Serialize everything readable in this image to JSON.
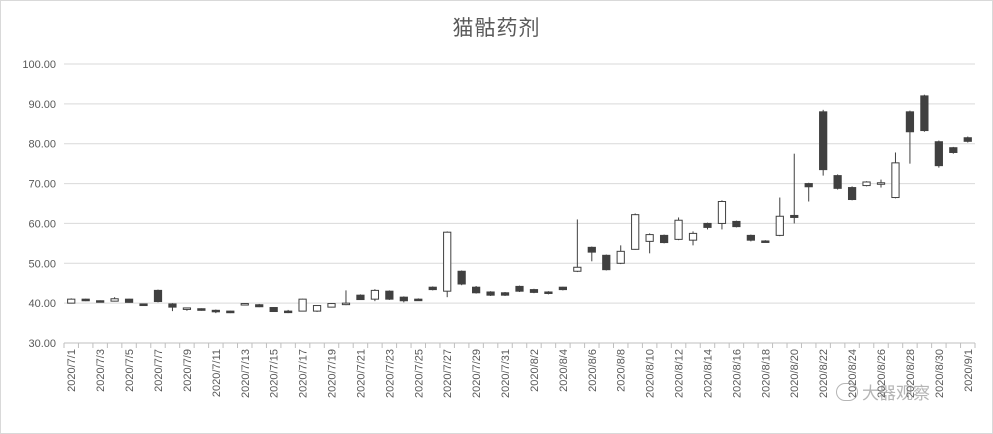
{
  "chart_data": {
    "type": "candlestick",
    "title": "猫骷药剂",
    "y_min": 30,
    "y_max": 100,
    "y_step": 10,
    "y_ticks": [
      "30.00",
      "40.00",
      "50.00",
      "60.00",
      "70.00",
      "80.00",
      "90.00",
      "100.00"
    ],
    "grid": true,
    "colors": {
      "up": "#ffffff",
      "down": "#404040",
      "outline": "#404040",
      "grid": "#d9d9d9",
      "axis": "#bfbfbf"
    },
    "dates": [
      "2020/7/1",
      "2020/7/2",
      "2020/7/3",
      "2020/7/4",
      "2020/7/5",
      "2020/7/6",
      "2020/7/7",
      "2020/7/8",
      "2020/7/9",
      "2020/7/10",
      "2020/7/11",
      "2020/7/12",
      "2020/7/13",
      "2020/7/14",
      "2020/7/15",
      "2020/7/16",
      "2020/7/17",
      "2020/7/18",
      "2020/7/19",
      "2020/7/20",
      "2020/7/21",
      "2020/7/22",
      "2020/7/23",
      "2020/7/24",
      "2020/7/25",
      "2020/7/26",
      "2020/7/27",
      "2020/7/28",
      "2020/7/29",
      "2020/7/30",
      "2020/7/31",
      "2020/8/1",
      "2020/8/2",
      "2020/8/3",
      "2020/8/4",
      "2020/8/5",
      "2020/8/6",
      "2020/8/7",
      "2020/8/8",
      "2020/8/9",
      "2020/8/10",
      "2020/8/11",
      "2020/8/12",
      "2020/8/13",
      "2020/8/14",
      "2020/8/15",
      "2020/8/16",
      "2020/8/17",
      "2020/8/18",
      "2020/8/19",
      "2020/8/20",
      "2020/8/21",
      "2020/8/22",
      "2020/8/23",
      "2020/8/24",
      "2020/8/25",
      "2020/8/26",
      "2020/8/27",
      "2020/8/28",
      "2020/8/29",
      "2020/8/30",
      "2020/8/31",
      "2020/9/1"
    ],
    "x_tick_labels": [
      "2020/7/1",
      "2020/7/3",
      "2020/7/5",
      "2020/7/7",
      "2020/7/9",
      "2020/7/11",
      "2020/7/13",
      "2020/7/15",
      "2020/7/17",
      "2020/7/19",
      "2020/7/21",
      "2020/7/23",
      "2020/7/25",
      "2020/7/27",
      "2020/7/29",
      "2020/7/31",
      "2020/8/2",
      "2020/8/4",
      "2020/8/6",
      "2020/8/8",
      "2020/8/10",
      "2020/8/12",
      "2020/8/14",
      "2020/8/16",
      "2020/8/18",
      "2020/8/20",
      "2020/8/22",
      "2020/8/24",
      "2020/8/26",
      "2020/8/28",
      "2020/8/30",
      "2020/9/1"
    ],
    "ohlc": [
      [
        40.0,
        41.2,
        39.9,
        41.0
      ],
      [
        41.0,
        41.1,
        40.5,
        40.6
      ],
      [
        40.6,
        40.7,
        40.2,
        40.3
      ],
      [
        40.5,
        41.5,
        40.4,
        41.1
      ],
      [
        41.0,
        41.1,
        40.1,
        40.2
      ],
      [
        39.8,
        39.9,
        39.3,
        39.4
      ],
      [
        43.2,
        43.4,
        40.2,
        40.4
      ],
      [
        39.8,
        40.0,
        38.0,
        39.0
      ],
      [
        38.5,
        38.9,
        38.1,
        38.8
      ],
      [
        38.6,
        38.7,
        38.1,
        38.2
      ],
      [
        38.2,
        38.4,
        37.5,
        37.9
      ],
      [
        38.0,
        38.1,
        37.5,
        37.6
      ],
      [
        39.6,
        40.0,
        39.5,
        39.9
      ],
      [
        39.6,
        39.8,
        39.0,
        39.1
      ],
      [
        38.9,
        39.0,
        37.8,
        37.9
      ],
      [
        38.0,
        38.3,
        37.5,
        37.8
      ],
      [
        38.0,
        41.1,
        37.9,
        41.0
      ],
      [
        38.0,
        39.5,
        37.8,
        39.4
      ],
      [
        39.0,
        40.0,
        38.9,
        39.9
      ],
      [
        39.8,
        43.2,
        39.5,
        40.0
      ],
      [
        42.0,
        42.2,
        40.8,
        40.9
      ],
      [
        41.0,
        43.5,
        40.5,
        43.2
      ],
      [
        43.0,
        43.2,
        40.8,
        41.0
      ],
      [
        41.5,
        41.7,
        40.2,
        40.6
      ],
      [
        41.0,
        41.2,
        40.6,
        40.8
      ],
      [
        44.0,
        44.2,
        43.2,
        43.4
      ],
      [
        43.0,
        58.0,
        41.5,
        57.8
      ],
      [
        48.0,
        48.2,
        44.5,
        44.8
      ],
      [
        44.0,
        44.3,
        42.4,
        42.6
      ],
      [
        42.8,
        43.0,
        41.8,
        42.0
      ],
      [
        42.6,
        42.8,
        41.8,
        42.0
      ],
      [
        44.2,
        44.4,
        42.8,
        43.0
      ],
      [
        43.4,
        43.6,
        42.5,
        42.7
      ],
      [
        42.8,
        43.0,
        42.2,
        42.6
      ],
      [
        44.0,
        44.1,
        43.2,
        43.4
      ],
      [
        48.0,
        61.0,
        47.8,
        49.0
      ],
      [
        54.0,
        54.2,
        50.5,
        52.8
      ],
      [
        52.0,
        52.2,
        48.2,
        48.4
      ],
      [
        50.0,
        54.5,
        49.8,
        53.0
      ],
      [
        53.5,
        62.5,
        53.4,
        62.2
      ],
      [
        55.5,
        57.5,
        52.5,
        57.2
      ],
      [
        57.0,
        57.2,
        55.0,
        55.2
      ],
      [
        56.0,
        61.5,
        55.8,
        60.8
      ],
      [
        55.8,
        58.0,
        54.5,
        57.5
      ],
      [
        60.0,
        60.2,
        58.5,
        59.0
      ],
      [
        60.0,
        65.8,
        58.5,
        65.5
      ],
      [
        60.5,
        60.7,
        59.0,
        59.2
      ],
      [
        57.0,
        57.2,
        55.5,
        55.8
      ],
      [
        55.6,
        55.8,
        55.2,
        55.4
      ],
      [
        57.0,
        66.5,
        56.8,
        61.8
      ],
      [
        62.0,
        77.5,
        60.0,
        61.5
      ],
      [
        70.0,
        70.2,
        65.5,
        69.2
      ],
      [
        88.0,
        88.5,
        72.0,
        73.5
      ],
      [
        72.0,
        72.3,
        68.5,
        68.8
      ],
      [
        69.0,
        69.3,
        65.8,
        66.0
      ],
      [
        69.5,
        70.6,
        69.3,
        70.4
      ],
      [
        70.0,
        71.0,
        69.0,
        70.2
      ],
      [
        66.5,
        77.8,
        66.3,
        75.2
      ],
      [
        88.0,
        88.3,
        75.0,
        83.0
      ],
      [
        92.0,
        92.3,
        83.0,
        83.3
      ],
      [
        80.5,
        80.8,
        74.0,
        74.5
      ],
      [
        79.0,
        79.2,
        77.5,
        77.8
      ],
      [
        81.5,
        81.8,
        80.3,
        80.6
      ]
    ]
  },
  "watermark": {
    "text": "大器观察",
    "icon": "wechat-icon"
  }
}
